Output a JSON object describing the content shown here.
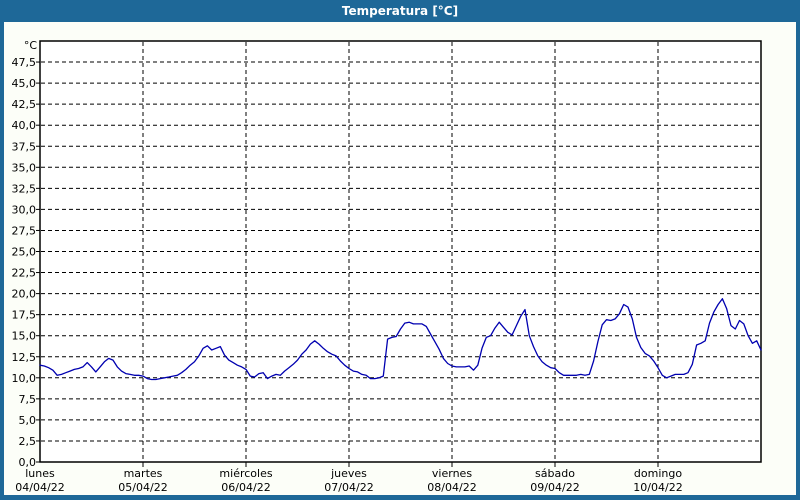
{
  "window": {
    "title": "Temperatura [°C]"
  },
  "colors": {
    "frame_blue": "#1e6898",
    "content_bg": "#fcfef8",
    "plot_bg": "#ffffff",
    "line_blue": "#0000b0",
    "grid": "#000000",
    "text": "#000000",
    "title_text": "#ffffff"
  },
  "chart_data": {
    "type": "line",
    "title": "Temperatura [°C]",
    "grid": "dashed",
    "legend": "none",
    "y_axis": {
      "unit": "°C",
      "min": 0,
      "max": 50,
      "tick_step": 2.5,
      "decimal_separator": ",",
      "tick_labels": [
        "0,0",
        "2,5",
        "5,0",
        "7,5",
        "10,0",
        "12,5",
        "15,0",
        "17,5",
        "20,0",
        "22,5",
        "25,0",
        "27,5",
        "30,0",
        "32,5",
        "35,0",
        "37,5",
        "40,0",
        "42,5",
        "45,0",
        "47,5"
      ]
    },
    "x_axis": {
      "days": [
        {
          "name": "lunes",
          "date": "04/04/22"
        },
        {
          "name": "martes",
          "date": "05/04/22"
        },
        {
          "name": "miércoles",
          "date": "06/04/22"
        },
        {
          "name": "jueves",
          "date": "07/04/22"
        },
        {
          "name": "viernes",
          "date": "08/04/22"
        },
        {
          "name": "sábado",
          "date": "09/04/22"
        },
        {
          "name": "domingo",
          "date": "10/04/22"
        }
      ],
      "days_shown": 7,
      "hours_per_point": 1
    },
    "series": [
      {
        "name": "Temperatura",
        "sampling": "hourly",
        "values": [
          11.5,
          11.4,
          11.2,
          10.9,
          10.3,
          10.4,
          10.6,
          10.8,
          11.0,
          11.1,
          11.3,
          11.8,
          11.3,
          10.7,
          11.3,
          11.9,
          12.3,
          12.1,
          11.3,
          10.8,
          10.5,
          10.4,
          10.3,
          10.3,
          10.2,
          9.9,
          9.8,
          9.8,
          9.9,
          10.0,
          10.1,
          10.2,
          10.3,
          10.6,
          11.0,
          11.5,
          11.9,
          12.6,
          13.5,
          13.8,
          13.3,
          13.5,
          13.7,
          12.7,
          12.1,
          11.8,
          11.5,
          11.3,
          11.0,
          10.2,
          10.1,
          10.5,
          10.6,
          9.9,
          10.2,
          10.4,
          10.3,
          10.8,
          11.2,
          11.6,
          12.1,
          12.8,
          13.3,
          14.0,
          14.4,
          14.0,
          13.5,
          13.1,
          12.8,
          12.6,
          12.0,
          11.5,
          11.1,
          10.8,
          10.7,
          10.4,
          10.3,
          9.9,
          9.9,
          10.0,
          10.2,
          14.6,
          14.8,
          14.9,
          15.8,
          16.5,
          16.6,
          16.4,
          16.4,
          16.4,
          16.1,
          15.2,
          14.3,
          13.4,
          12.3,
          11.7,
          11.4,
          11.3,
          11.3,
          11.3,
          11.4,
          10.9,
          11.5,
          13.5,
          14.8,
          15.0,
          15.9,
          16.6,
          16.0,
          15.4,
          15.1,
          16.2,
          17.3,
          18.1,
          15.0,
          13.7,
          12.6,
          11.9,
          11.5,
          11.2,
          11.1,
          10.6,
          10.3,
          10.3,
          10.3,
          10.3,
          10.4,
          10.3,
          10.4,
          12.0,
          14.3,
          16.3,
          16.9,
          16.8,
          17.0,
          17.6,
          18.7,
          18.4,
          17.0,
          14.8,
          13.6,
          12.9,
          12.6,
          12.0,
          11.2,
          10.3,
          10.0,
          10.2,
          10.4,
          10.4,
          10.4,
          10.6,
          11.6,
          13.9,
          14.1,
          14.4,
          16.5,
          17.8,
          18.7,
          19.4,
          18.2,
          16.2,
          15.8,
          16.8,
          16.4,
          15.0,
          14.1,
          14.4,
          13.3
        ]
      }
    ]
  }
}
